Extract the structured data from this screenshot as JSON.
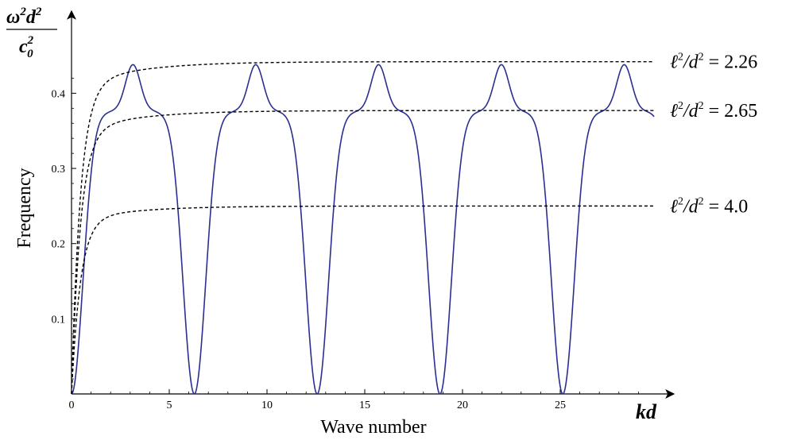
{
  "chart_data": {
    "type": "line",
    "title": "",
    "xlabel": "Wave number",
    "ylabel": "Frequency",
    "x_unit": {
      "main": "kd"
    },
    "y_unit": {
      "num": "ω",
      "num_sup": "2",
      "num2": "d",
      "num2_sup": "2",
      "den": "c",
      "den_sub": "0",
      "den_sup": "2"
    },
    "xlim": [
      0,
      30
    ],
    "ylim": [
      0,
      0.42
    ],
    "x_ticks": [
      0,
      5,
      10,
      15,
      20,
      25
    ],
    "x_tick_labels": [
      "0",
      "5",
      "10",
      "15",
      "20",
      "25"
    ],
    "y_ticks": [
      0.1,
      0.2,
      0.3,
      0.4
    ],
    "y_tick_labels": [
      "0.1",
      "0.2",
      "0.3",
      "0.4"
    ],
    "grid": false,
    "series": [
      {
        "style": "solid",
        "color": "#2b2f8f",
        "function": "dispersion",
        "x_range": [
          0,
          29.8
        ],
        "samples_x": [
          0,
          1.4,
          2.0,
          3.14,
          4.3,
          4.7,
          6.28,
          7.85,
          9.42,
          11.0,
          12.57,
          14.14,
          15.71,
          17.28,
          18.85,
          20.42,
          21.99,
          23.56,
          25.13,
          26.7,
          28.27
        ],
        "samples_y": [
          0,
          0.388,
          0.375,
          0.443,
          0.375,
          0.388,
          0,
          0.388,
          0.443,
          0.388,
          0,
          0.388,
          0.443,
          0.388,
          0,
          0.388,
          0.443,
          0.388,
          0,
          0.388,
          0.443
        ]
      },
      {
        "style": "dashed",
        "color": "#000000",
        "asymptote": 0.442,
        "x_range": [
          0,
          29.8
        ],
        "annotation": {
          "text": "ℓ",
          "sup": "2",
          "rest": "/d",
          "sup2": "2",
          "eq": " = 2.26"
        }
      },
      {
        "style": "dashed",
        "color": "#000000",
        "asymptote": 0.377,
        "x_range": [
          0,
          29.8
        ],
        "annotation": {
          "text": "ℓ",
          "sup": "2",
          "rest": "/d",
          "sup2": "2",
          "eq": " = 2.65"
        }
      },
      {
        "style": "dashed",
        "color": "#000000",
        "asymptote": 0.25,
        "x_range": [
          0,
          29.8
        ],
        "annotation": {
          "text": "ℓ",
          "sup": "2",
          "rest": "/d",
          "sup2": "2",
          "eq": " = 4.0"
        }
      }
    ]
  }
}
